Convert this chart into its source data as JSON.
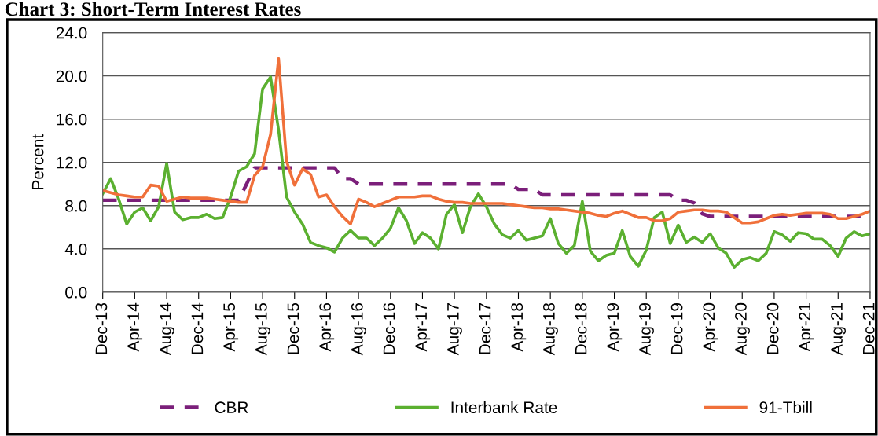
{
  "chart_data": {
    "type": "line",
    "title": "Chart 3: Short-Term Interest Rates",
    "ylabel": "Percent",
    "categories": [
      "Dec-13",
      null,
      null,
      null,
      "Apr-14",
      null,
      null,
      null,
      "Aug-14",
      null,
      null,
      null,
      "Dec-14",
      null,
      null,
      null,
      "Apr-15",
      null,
      null,
      null,
      "Aug-15",
      null,
      null,
      null,
      "Dec-15",
      null,
      null,
      null,
      "Apr-16",
      null,
      null,
      null,
      "Aug-16",
      null,
      null,
      null,
      "Dec-16",
      null,
      null,
      null,
      "Apr-17",
      null,
      null,
      null,
      "Aug-17",
      null,
      null,
      null,
      "Dec-17",
      null,
      null,
      null,
      "Apr-18",
      null,
      null,
      null,
      "Aug-18",
      null,
      null,
      null,
      "Dec-18",
      null,
      null,
      null,
      "Apr-19",
      null,
      null,
      null,
      "Aug-19",
      null,
      null,
      null,
      "Dec-19",
      null,
      null,
      null,
      "Apr-20",
      null,
      null,
      null,
      "Aug-20",
      null,
      null,
      null,
      "Dec-20",
      null,
      null,
      null,
      "Apr-21",
      null,
      null,
      null,
      "Aug-21",
      null,
      null,
      null,
      "Dec-21"
    ],
    "ylim": [
      0,
      24
    ],
    "yticks": [
      {
        "value": 0,
        "label": "0.0"
      },
      {
        "value": 4,
        "label": "4.0"
      },
      {
        "value": 8,
        "label": "8.0"
      },
      {
        "value": 12,
        "label": "12.0"
      },
      {
        "value": 16,
        "label": "16.0"
      },
      {
        "value": 20,
        "label": "20.0"
      },
      {
        "value": 24,
        "label": "24.0"
      }
    ],
    "grid": "y",
    "legend": "bottom",
    "marker": "none",
    "series": [
      {
        "name": "CBR",
        "color": "#7b1f7a",
        "line_style": "dashed",
        "values": [
          8.5,
          8.5,
          8.5,
          8.5,
          8.5,
          8.5,
          8.5,
          8.5,
          8.5,
          8.5,
          8.5,
          8.5,
          8.5,
          8.5,
          8.5,
          8.5,
          8.5,
          8.5,
          10.0,
          11.5,
          11.5,
          11.5,
          11.5,
          11.5,
          11.5,
          11.5,
          11.5,
          11.5,
          11.5,
          11.5,
          10.5,
          10.5,
          10.0,
          10.0,
          10.0,
          10.0,
          10.0,
          10.0,
          10.0,
          10.0,
          10.0,
          10.0,
          10.0,
          10.0,
          10.0,
          10.0,
          10.0,
          10.0,
          10.0,
          10.0,
          10.0,
          10.0,
          9.5,
          9.5,
          9.5,
          9.0,
          9.0,
          9.0,
          9.0,
          9.0,
          9.0,
          9.0,
          9.0,
          9.0,
          9.0,
          9.0,
          9.0,
          9.0,
          9.0,
          9.0,
          9.0,
          9.0,
          8.5,
          8.5,
          8.25,
          7.25,
          7.0,
          7.0,
          7.0,
          7.0,
          7.0,
          7.0,
          7.0,
          7.0,
          7.0,
          7.0,
          7.0,
          7.0,
          7.0,
          7.0,
          7.0,
          7.0,
          7.0,
          7.0,
          7.0,
          7.0,
          7.0
        ]
      },
      {
        "name": "Interbank Rate",
        "color": "#5bb030",
        "line_style": "solid",
        "values": [
          9.1,
          10.5,
          8.6,
          6.3,
          7.4,
          7.8,
          6.6,
          7.9,
          11.9,
          7.4,
          6.7,
          6.9,
          6.9,
          7.2,
          6.8,
          6.9,
          8.8,
          11.2,
          11.6,
          12.8,
          18.8,
          19.9,
          15.0,
          8.8,
          7.4,
          6.3,
          4.6,
          4.3,
          4.1,
          3.7,
          5.0,
          5.7,
          5.0,
          5.0,
          4.3,
          5.0,
          5.9,
          7.8,
          6.6,
          4.5,
          5.5,
          5.0,
          4.0,
          7.2,
          8.1,
          5.5,
          7.9,
          9.1,
          7.9,
          6.3,
          5.3,
          5.0,
          5.7,
          4.8,
          5.0,
          5.2,
          6.8,
          4.5,
          3.6,
          4.3,
          8.4,
          3.8,
          2.9,
          3.4,
          3.6,
          5.7,
          3.3,
          2.4,
          3.9,
          6.9,
          7.4,
          4.5,
          6.2,
          4.6,
          5.1,
          4.6,
          5.4,
          4.1,
          3.6,
          2.3,
          3.0,
          3.2,
          2.9,
          3.6,
          5.6,
          5.3,
          4.7,
          5.5,
          5.4,
          4.9,
          4.9,
          4.3,
          3.3,
          5.0,
          5.6,
          5.2,
          5.4
        ]
      },
      {
        "name": "91-Tbill",
        "color": "#f0703a",
        "line_style": "solid",
        "values": [
          9.4,
          9.2,
          9.0,
          8.9,
          8.8,
          8.8,
          9.9,
          9.8,
          8.4,
          8.6,
          8.8,
          8.7,
          8.7,
          8.7,
          8.6,
          8.5,
          8.4,
          8.3,
          8.3,
          10.8,
          11.6,
          14.6,
          21.6,
          12.1,
          9.9,
          11.4,
          10.9,
          8.8,
          9.0,
          7.9,
          7.0,
          6.3,
          8.6,
          8.3,
          7.9,
          8.2,
          8.5,
          8.8,
          8.8,
          8.8,
          8.9,
          8.9,
          8.6,
          8.4,
          8.3,
          8.3,
          8.2,
          8.2,
          8.2,
          8.2,
          8.2,
          8.1,
          8.0,
          7.9,
          7.8,
          7.8,
          7.7,
          7.7,
          7.6,
          7.5,
          7.4,
          7.3,
          7.1,
          7.0,
          7.3,
          7.5,
          7.2,
          6.9,
          6.9,
          6.6,
          6.6,
          6.8,
          7.4,
          7.5,
          7.6,
          7.6,
          7.5,
          7.5,
          7.4,
          6.9,
          6.4,
          6.4,
          6.5,
          6.8,
          7.1,
          7.2,
          7.1,
          7.2,
          7.3,
          7.3,
          7.3,
          7.2,
          6.8,
          6.8,
          7.0,
          7.2,
          7.5
        ]
      }
    ]
  }
}
